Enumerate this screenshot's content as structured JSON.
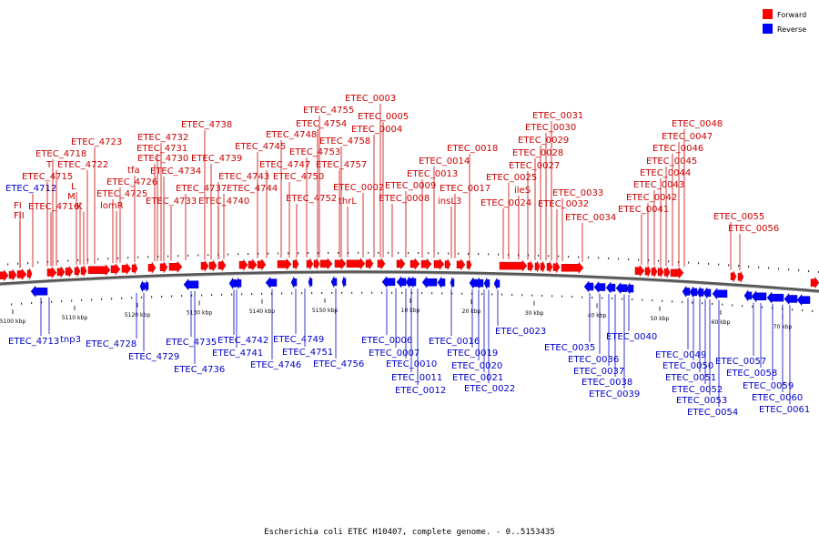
{
  "legend": [
    {
      "name": "Forward",
      "color": "#ff0000"
    },
    {
      "name": "Reverse",
      "color": "#0000ff"
    }
  ],
  "caption": "Escherichia coli ETEC H10407, complete genome. - 0..5153435",
  "ticks": [
    "5100 kbp",
    "5110 kbp",
    "5120 kbp",
    "5130 kbp",
    "5140 kbp",
    "5150 kbp",
    "10 kbp",
    "20 kbp",
    "30 kbp",
    "40 kbp",
    "50 kbp",
    "60 kbp",
    "70 kbp"
  ],
  "forward_labels": [
    "FII",
    "FI",
    "ETEC_4712",
    "ETEC_4715",
    "ETEC_4716",
    "ETEC_4718",
    "T",
    "ETEC_4722",
    "L",
    "M",
    "K",
    "ETEC_4723",
    "lomR",
    "ETEC_4725",
    "ETEC_4726",
    "tfa",
    "ETEC_4730",
    "ETEC_4731",
    "ETEC_4732",
    "ETEC_4733",
    "ETEC_4734",
    "ETEC_4737",
    "ETEC_4738",
    "ETEC_4739",
    "ETEC_4740",
    "ETEC_4743",
    "ETEC_4744",
    "ETEC_4745",
    "ETEC_4747",
    "ETEC_4748",
    "ETEC_4750",
    "ETEC_4752",
    "ETEC_4753",
    "ETEC_4754",
    "ETEC_4755",
    "ETEC_4757",
    "ETEC_4758",
    "thrL",
    "ETEC_0002",
    "ETEC_0003",
    "ETEC_0004",
    "ETEC_0005",
    "ETEC_0008",
    "ETEC_0009",
    "ETEC_0013",
    "ETEC_0014",
    "insL3",
    "ETEC_0017",
    "ETEC_0018",
    "ETEC_0024",
    "ETEC_0025",
    "ileS",
    "ETEC_0027",
    "ETEC_0028",
    "ETEC_0029",
    "ETEC_0030",
    "ETEC_0031",
    "ETEC_0032",
    "ETEC_0033",
    "ETEC_0034",
    "ETEC_0041",
    "ETEC_0042",
    "ETEC_0043",
    "ETEC_0044",
    "ETEC_0045",
    "ETEC_0046",
    "ETEC_0047",
    "ETEC_0048",
    "ETEC_0055",
    "ETEC_0056"
  ],
  "reverse_labels": [
    "ETEC_4713",
    "tnp3",
    "ETEC_4728",
    "ETEC_4729",
    "ETEC_4735",
    "ETEC_4736",
    "ETEC_4741",
    "ETEC_4742",
    "ETEC_4746",
    "ETEC_4749",
    "ETEC_4751",
    "ETEC_4756",
    "ETEC_0006",
    "ETEC_0007",
    "ETEC_0010",
    "ETEC_0011",
    "ETEC_0012",
    "ETEC_0016",
    "ETEC_0019",
    "ETEC_0020",
    "ETEC_0021",
    "ETEC_0022",
    "ETEC_0023",
    "ETEC_0035",
    "ETEC_0036",
    "ETEC_0037",
    "ETEC_0038",
    "ETEC_0039",
    "ETEC_0040",
    "ETEC_0049",
    "ETEC_0050",
    "ETEC_0051",
    "ETEC_0052",
    "ETEC_0053",
    "ETEC_0054",
    "ETEC_0057",
    "ETEC_0058",
    "ETEC_0059",
    "ETEC_0060",
    "ETEC_0061"
  ]
}
